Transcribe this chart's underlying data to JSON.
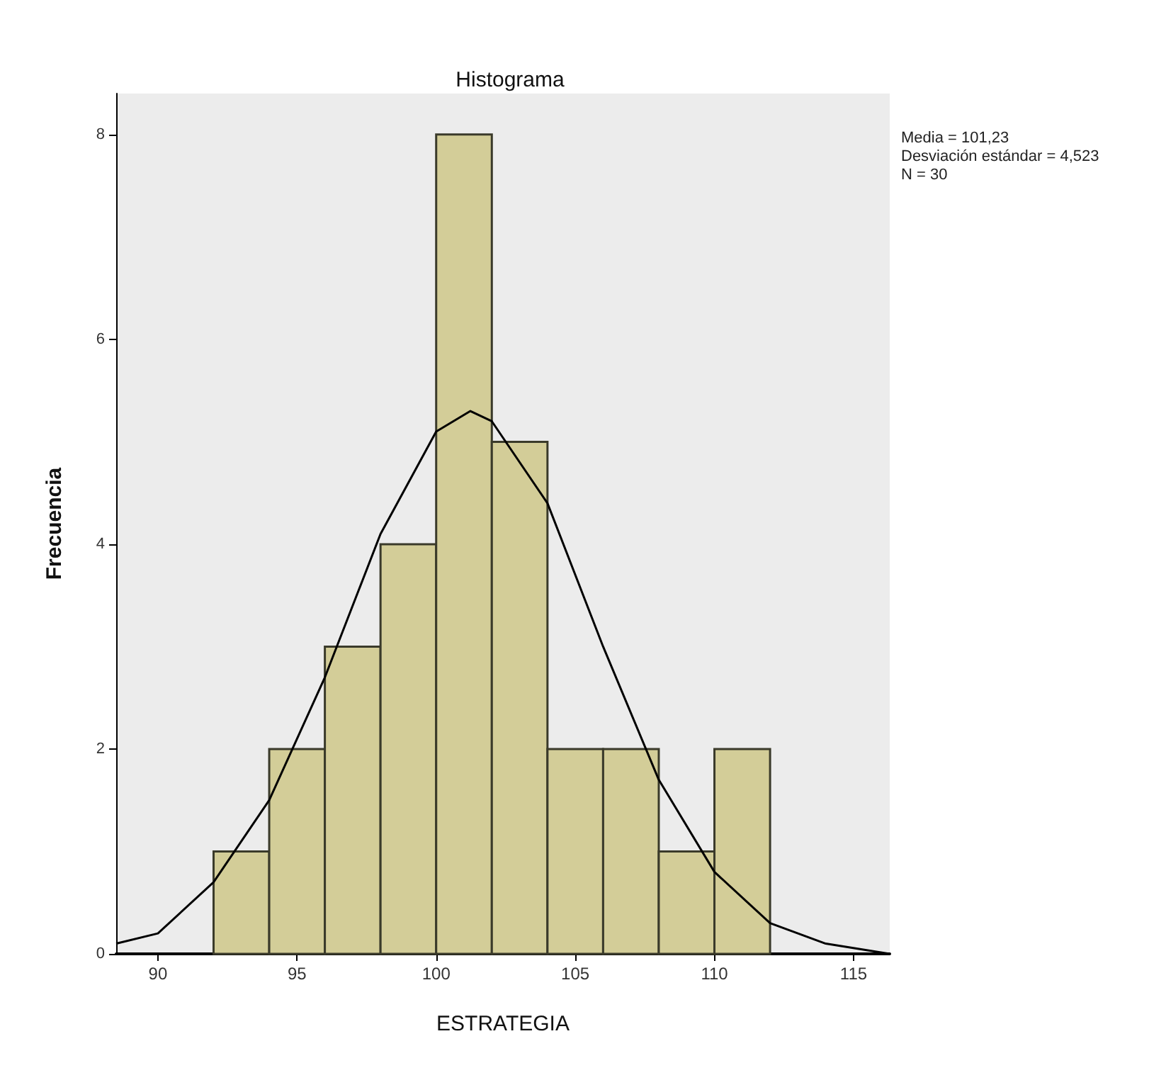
{
  "chart_data": {
    "type": "histogram",
    "title": "Histograma",
    "xlabel": "ESTRATEGIA",
    "ylabel": "Frecuencia",
    "annotations": [
      "Media = 101,23",
      "Desviación estándar = 4,523",
      "N = 30"
    ],
    "bins": [
      92,
      94,
      96,
      98,
      100,
      102,
      104,
      106,
      108,
      110,
      112
    ],
    "series": [
      {
        "color": "#d3cd98",
        "values": [
          1,
          2,
          3,
          4,
          8,
          5,
          2,
          2,
          1,
          2
        ]
      },
      {
        "type": "line",
        "color": "#000000",
        "x": [
          88.5,
          90,
          92,
          94,
          96,
          98,
          100,
          101.23,
          102,
          104,
          106,
          108,
          110,
          112,
          114,
          116.3
        ],
        "values": [
          0.1,
          0.2,
          0.7,
          1.5,
          2.7,
          4.1,
          5.1,
          5.3,
          5.2,
          4.4,
          3.0,
          1.7,
          0.8,
          0.3,
          0.1,
          0.0
        ]
      }
    ],
    "xlim": [
      88.5,
      116.3
    ],
    "xticks": [
      90,
      95,
      100,
      105,
      110,
      115
    ],
    "ylim": [
      0,
      8.4
    ],
    "yticks": [
      0,
      2,
      4,
      6,
      8
    ],
    "grid": false
  }
}
